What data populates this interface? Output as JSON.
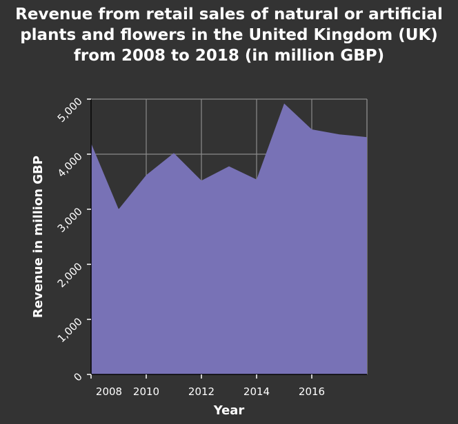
{
  "chart_data": {
    "type": "area",
    "title": "Revenue from retail sales of natural or artificial plants and flowers in the United Kingdom (UK) from 2008 to 2018 (in million GBP)",
    "xlabel": "Year",
    "ylabel": "Revenue in million GBP",
    "x": [
      2008,
      2009,
      2010,
      2011,
      2012,
      2013,
      2014,
      2015,
      2016,
      2017,
      2018
    ],
    "values": [
      4200,
      3000,
      3620,
      4020,
      3520,
      3780,
      3540,
      4920,
      4450,
      4360,
      4310
    ],
    "xlim": [
      2008,
      2018
    ],
    "ylim": [
      0,
      5000
    ],
    "x_ticks": [
      {
        "value": 2008,
        "label": "2008"
      },
      {
        "value": 2010,
        "label": "2010"
      },
      {
        "value": 2012,
        "label": "2012"
      },
      {
        "value": 2014,
        "label": "2014"
      },
      {
        "value": 2016,
        "label": "2016"
      }
    ],
    "y_ticks": [
      {
        "value": 0,
        "label": "0"
      },
      {
        "value": 1000,
        "label": "1,000"
      },
      {
        "value": 2000,
        "label": "2,000"
      },
      {
        "value": 3000,
        "label": "3,000"
      },
      {
        "value": 4000,
        "label": "4,000"
      },
      {
        "value": 5000,
        "label": "5,000"
      }
    ],
    "grid": true,
    "colors": {
      "background": "#333333",
      "area_fill": "#7872b6",
      "grid": "#8c8c8c",
      "text": "#ffffff"
    }
  }
}
